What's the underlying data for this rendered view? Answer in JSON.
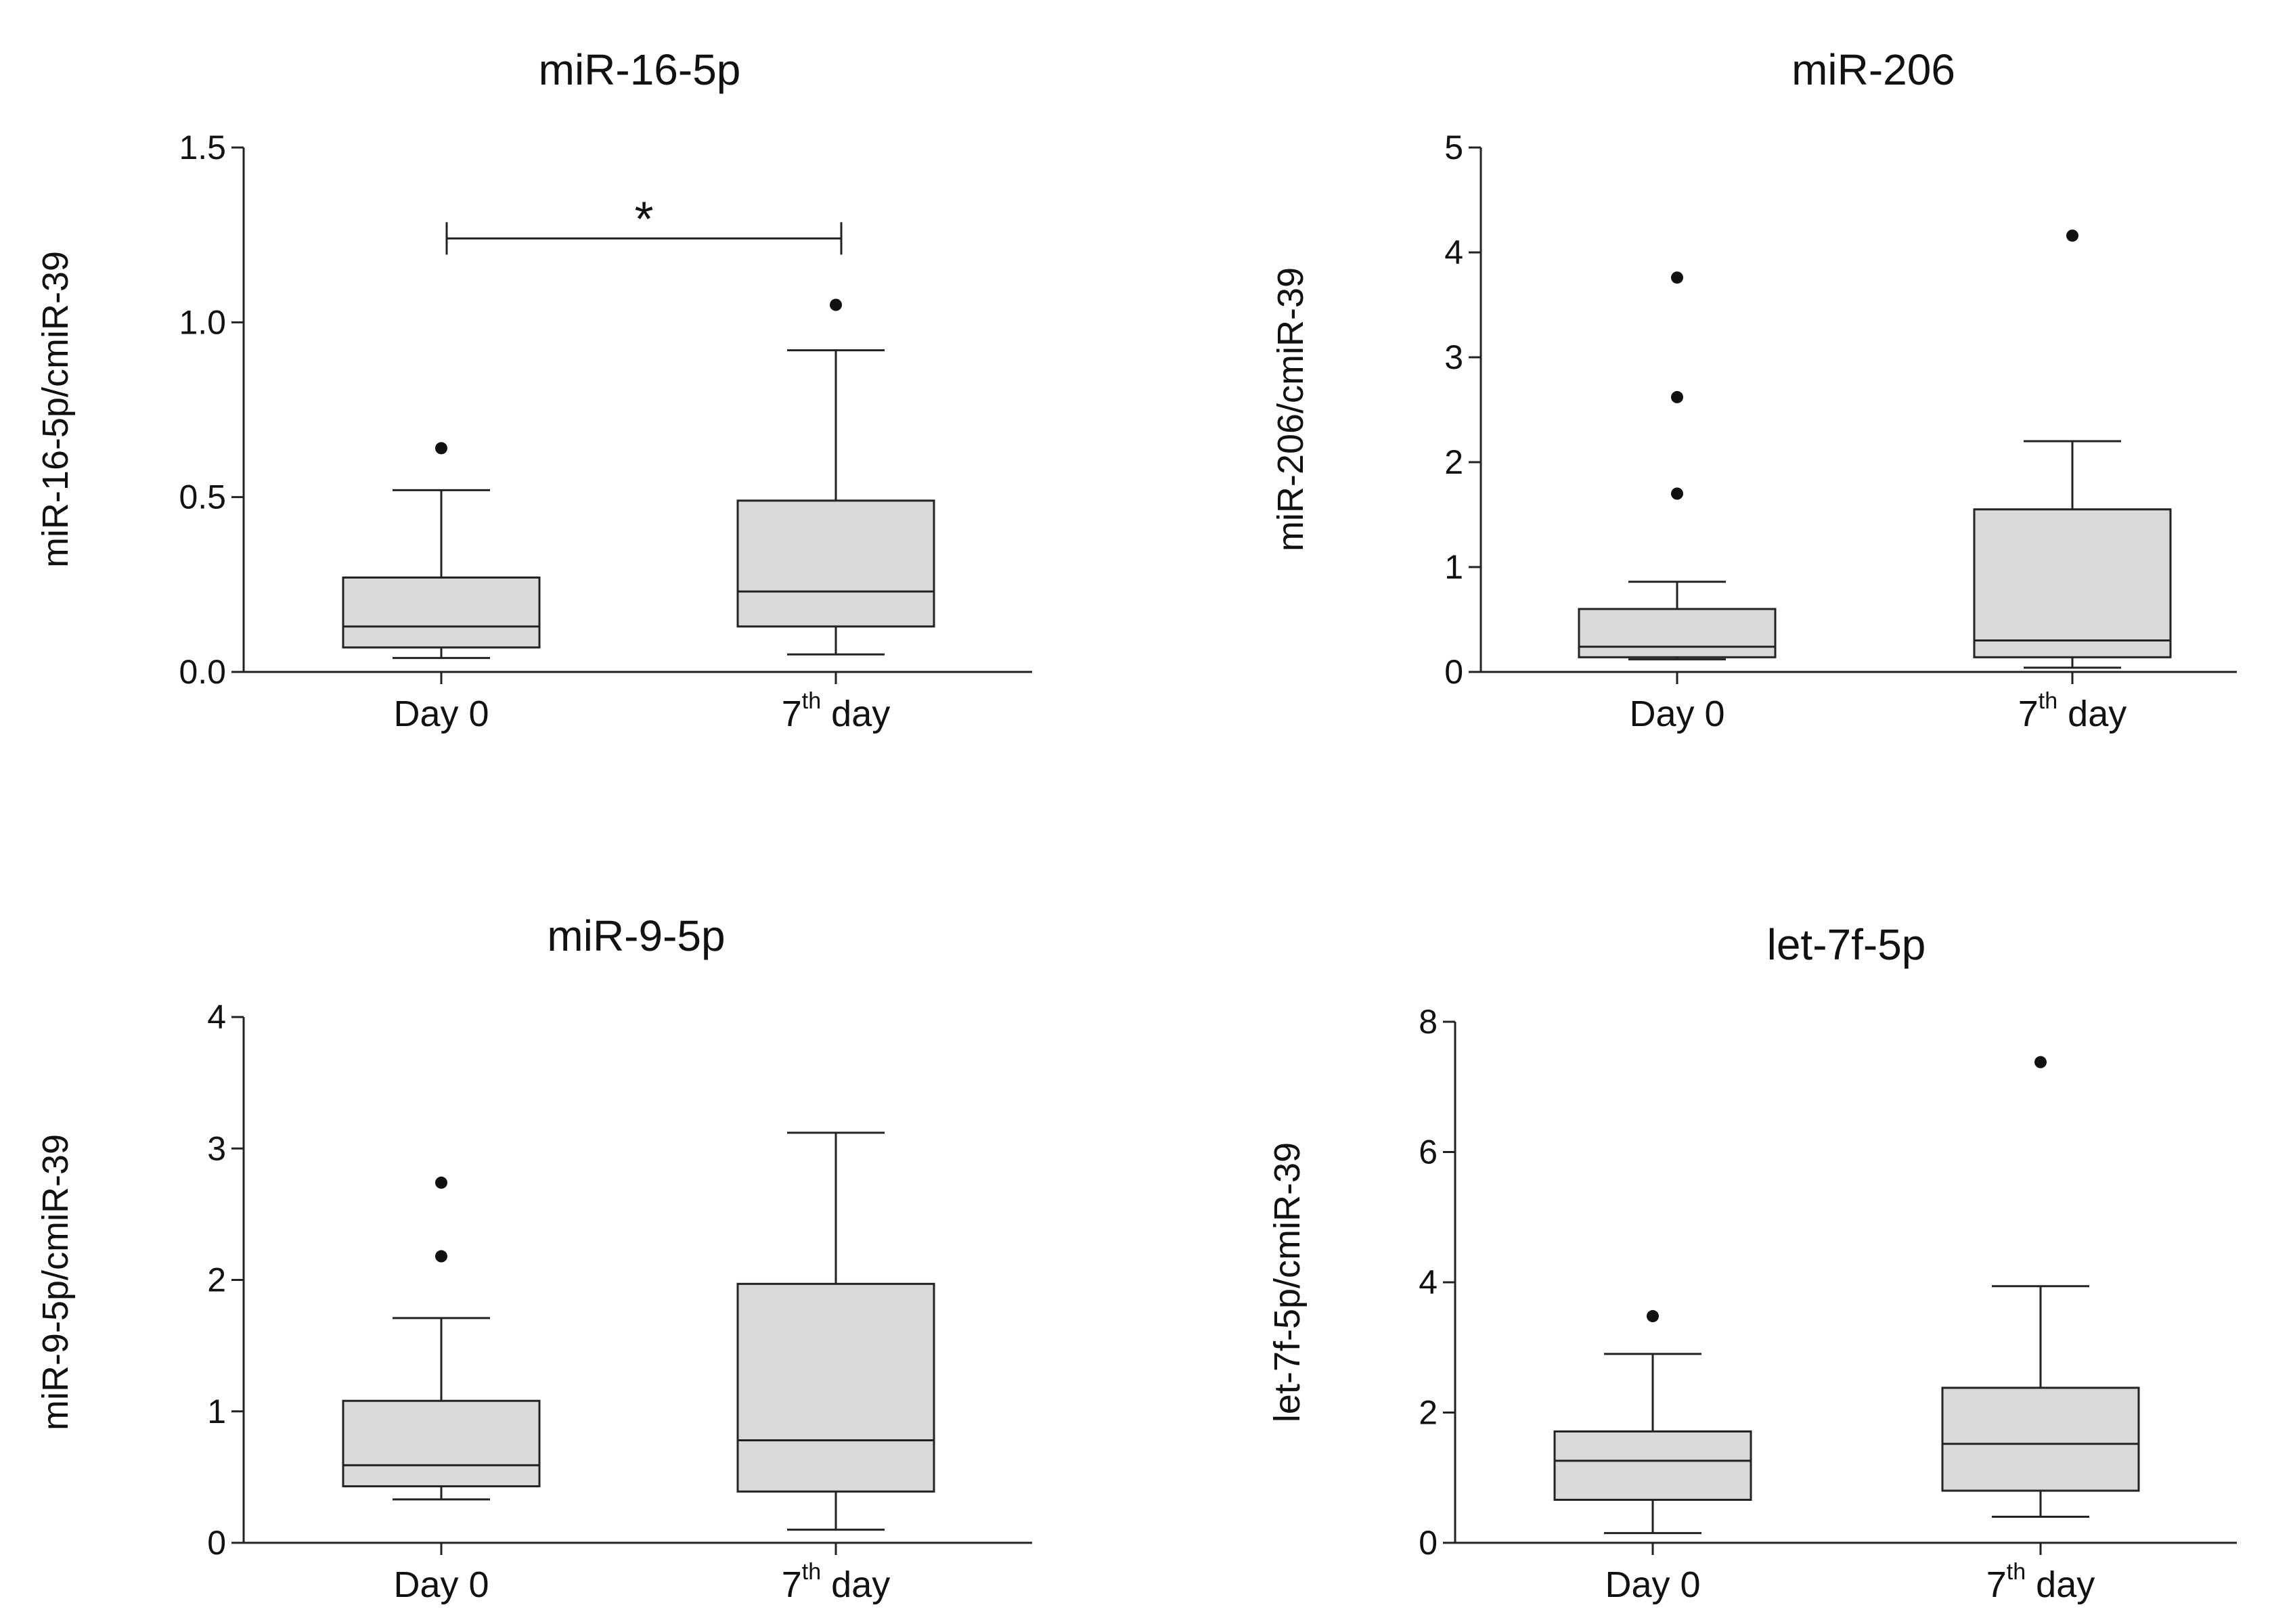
{
  "chart_data": [
    {
      "type": "box",
      "title": "miR-16-5p",
      "ylabel": "miR-16-5p/cmiR-39",
      "ylim": [
        0,
        1.5
      ],
      "yticks": [
        "0.0",
        "0.5",
        "1.0",
        "1.5"
      ],
      "ytick_values": [
        0,
        0.5,
        1.0,
        1.5
      ],
      "categories": [
        {
          "main": "Day 0",
          "sup": "",
          "tail": ""
        },
        {
          "main": "7",
          "sup": "th",
          "tail": " day"
        }
      ],
      "boxes": [
        {
          "whisker_low": 0.04,
          "q1": 0.07,
          "median": 0.13,
          "q3": 0.27,
          "whisker_high": 0.52,
          "outliers": [
            0.64
          ]
        },
        {
          "whisker_low": 0.05,
          "q1": 0.13,
          "median": 0.23,
          "q3": 0.49,
          "whisker_high": 0.92,
          "outliers": [
            1.05
          ]
        }
      ],
      "significance": {
        "label": "*",
        "value": 1.24
      }
    },
    {
      "type": "box",
      "title": "miR-206",
      "ylabel": "miR-206/cmiR-39",
      "ylim": [
        0,
        5
      ],
      "yticks": [
        "0",
        "1",
        "2",
        "3",
        "4",
        "5"
      ],
      "ytick_values": [
        0,
        1,
        2,
        3,
        4,
        5
      ],
      "categories": [
        {
          "main": "Day 0",
          "sup": "",
          "tail": ""
        },
        {
          "main": "7",
          "sup": "th",
          "tail": " day"
        }
      ],
      "boxes": [
        {
          "whisker_low": 0.12,
          "q1": 0.14,
          "median": 0.24,
          "q3": 0.6,
          "whisker_high": 0.86,
          "outliers": [
            1.7,
            2.62,
            3.76
          ]
        },
        {
          "whisker_low": 0.04,
          "q1": 0.14,
          "median": 0.3,
          "q3": 1.55,
          "whisker_high": 2.2,
          "outliers": [
            4.16
          ]
        }
      ],
      "significance": null
    },
    {
      "type": "box",
      "title": "miR-9-5p",
      "ylabel": "miR-9-5p/cmiR-39",
      "ylim": [
        0,
        4
      ],
      "yticks": [
        "0",
        "1",
        "2",
        "3",
        "4"
      ],
      "ytick_values": [
        0,
        1,
        2,
        3,
        4
      ],
      "categories": [
        {
          "main": "Day 0",
          "sup": "",
          "tail": ""
        },
        {
          "main": "7",
          "sup": "th",
          "tail": " day"
        }
      ],
      "boxes": [
        {
          "whisker_low": 0.33,
          "q1": 0.43,
          "median": 0.59,
          "q3": 1.08,
          "whisker_high": 1.71,
          "outliers": [
            2.18,
            2.74
          ]
        },
        {
          "whisker_low": 0.1,
          "q1": 0.39,
          "median": 0.78,
          "q3": 1.97,
          "whisker_high": 3.12,
          "outliers": []
        }
      ],
      "significance": null
    },
    {
      "type": "box",
      "title": "let-7f-5p",
      "ylabel": "let-7f-5p/cmiR-39",
      "ylim": [
        0,
        8
      ],
      "yticks": [
        "0",
        "2",
        "4",
        "6",
        "8"
      ],
      "ytick_values": [
        0,
        2,
        4,
        6,
        8
      ],
      "categories": [
        {
          "main": "Day 0",
          "sup": "",
          "tail": ""
        },
        {
          "main": "7",
          "sup": "th",
          "tail": " day"
        }
      ],
      "boxes": [
        {
          "whisker_low": 0.15,
          "q1": 0.66,
          "median": 1.26,
          "q3": 1.71,
          "whisker_high": 2.9,
          "outliers": [
            3.48
          ]
        },
        {
          "whisker_low": 0.4,
          "q1": 0.8,
          "median": 1.52,
          "q3": 2.38,
          "whisker_high": 3.94,
          "outliers": [
            7.38
          ]
        }
      ],
      "significance": null
    }
  ]
}
